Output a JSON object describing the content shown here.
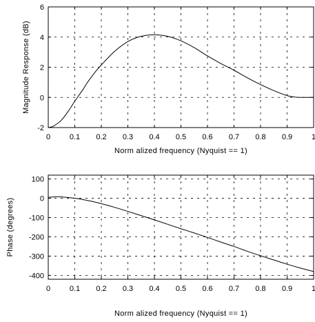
{
  "chart_data": [
    {
      "type": "line",
      "title": "",
      "xlabel": "Norm alized frequency (Nyquist == 1)",
      "ylabel": "Magnitude Response (dB)",
      "xlim": [
        0,
        1
      ],
      "ylim": [
        -2,
        6
      ],
      "xticks": [
        0,
        0.1,
        0.2,
        0.3,
        0.4,
        0.5,
        0.6,
        0.7,
        0.8,
        0.9,
        1
      ],
      "xtick_labels": [
        "0",
        "0.1",
        "0.2",
        "0.3",
        "0.4",
        "0.5",
        "0.6",
        "0.7",
        "0.8",
        "0.9",
        "1"
      ],
      "yticks": [
        -2,
        0,
        2,
        4,
        6
      ],
      "ytick_labels": [
        "-2",
        "0",
        "2",
        "4",
        "6"
      ],
      "grid": true,
      "series": [
        {
          "x": [
            0,
            0.02,
            0.05,
            0.08,
            0.1,
            0.13,
            0.15,
            0.18,
            0.2,
            0.25,
            0.3,
            0.35,
            0.4,
            0.45,
            0.5,
            0.55,
            0.6,
            0.65,
            0.7,
            0.75,
            0.8,
            0.85,
            0.9,
            0.93,
            0.95,
            0.97,
            1
          ],
          "y": [
            -2.0,
            -1.9,
            -1.5,
            -0.8,
            -0.25,
            0.5,
            1.05,
            1.75,
            2.15,
            3.05,
            3.7,
            4.05,
            4.15,
            4.05,
            3.75,
            3.3,
            2.75,
            2.25,
            1.8,
            1.3,
            0.85,
            0.45,
            0.12,
            0.02,
            0.0,
            0.0,
            0.0
          ]
        }
      ]
    },
    {
      "type": "line",
      "title": "",
      "xlabel": "Norm alized frequency (Nyquist == 1)",
      "ylabel": "Phase (degrees)",
      "xlim": [
        0,
        1
      ],
      "ylim": [
        -420,
        120
      ],
      "xticks": [
        0,
        0.1,
        0.2,
        0.3,
        0.4,
        0.5,
        0.6,
        0.7,
        0.8,
        0.9,
        1
      ],
      "xtick_labels": [
        "0",
        "0.1",
        "0.2",
        "0.3",
        "0.4",
        "0.5",
        "0.6",
        "0.7",
        "0.8",
        "0.9",
        "1"
      ],
      "yticks": [
        -400,
        -300,
        -200,
        -100,
        0,
        100
      ],
      "ytick_labels": [
        "-400",
        "-300",
        "-200",
        "-100",
        "0",
        "100"
      ],
      "grid": true,
      "series": [
        {
          "x": [
            0,
            0.03,
            0.05,
            0.1,
            0.15,
            0.2,
            0.25,
            0.3,
            0.35,
            0.4,
            0.45,
            0.5,
            0.55,
            0.6,
            0.65,
            0.7,
            0.75,
            0.8,
            0.85,
            0.9,
            0.95,
            1
          ],
          "y": [
            5,
            8,
            7,
            0,
            -12,
            -28,
            -47,
            -68,
            -90,
            -112,
            -135,
            -158,
            -180,
            -203,
            -227,
            -250,
            -275,
            -298,
            -320,
            -342,
            -362,
            -380
          ]
        }
      ]
    }
  ]
}
